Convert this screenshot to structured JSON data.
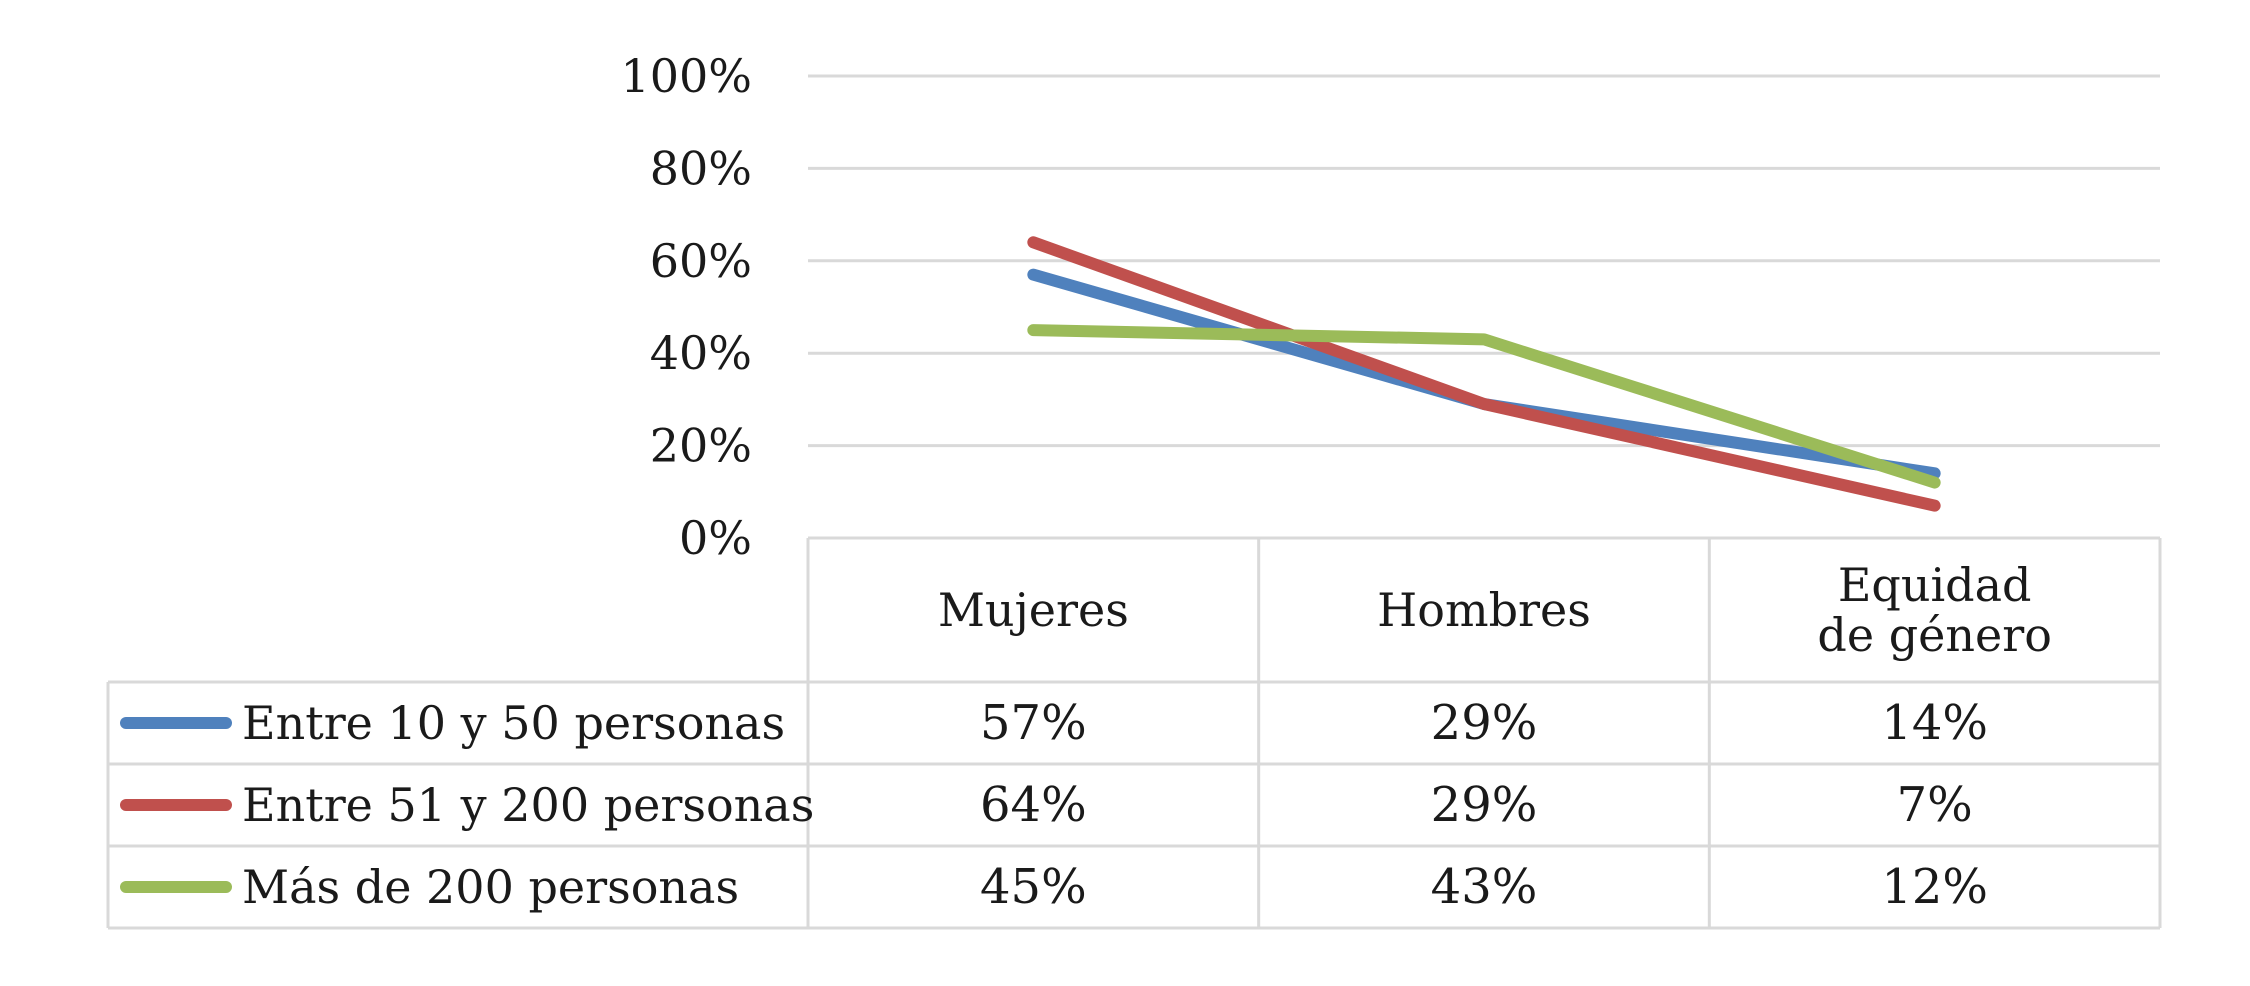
{
  "chart_data": {
    "type": "line",
    "categories": [
      "Mujeres",
      "Hombres",
      "Equidad\nde género"
    ],
    "series": [
      {
        "name": "Entre 10 y 50 personas",
        "values": [
          57,
          29,
          14
        ],
        "labels": [
          "57%",
          "29%",
          "14%"
        ],
        "color": "#4F81BD"
      },
      {
        "name": "Entre 51 y 200 personas",
        "values": [
          64,
          29,
          7
        ],
        "labels": [
          "64%",
          "29%",
          "7%"
        ],
        "color": "#C0504D"
      },
      {
        "name": "Más de 200 personas",
        "values": [
          45,
          43,
          12
        ],
        "labels": [
          "45%",
          "43%",
          "12%"
        ],
        "color": "#9BBB59"
      }
    ],
    "yticks": [
      0,
      20,
      40,
      60,
      80,
      100
    ],
    "ytick_labels": [
      "0%",
      "20%",
      "40%",
      "60%",
      "80%",
      "100%"
    ],
    "ylim": [
      0,
      100
    ],
    "grid": true,
    "legend": "data-table-left",
    "data_table": true,
    "gridline_color": "#D9D9D9",
    "title": "",
    "xlabel": "",
    "ylabel": ""
  }
}
